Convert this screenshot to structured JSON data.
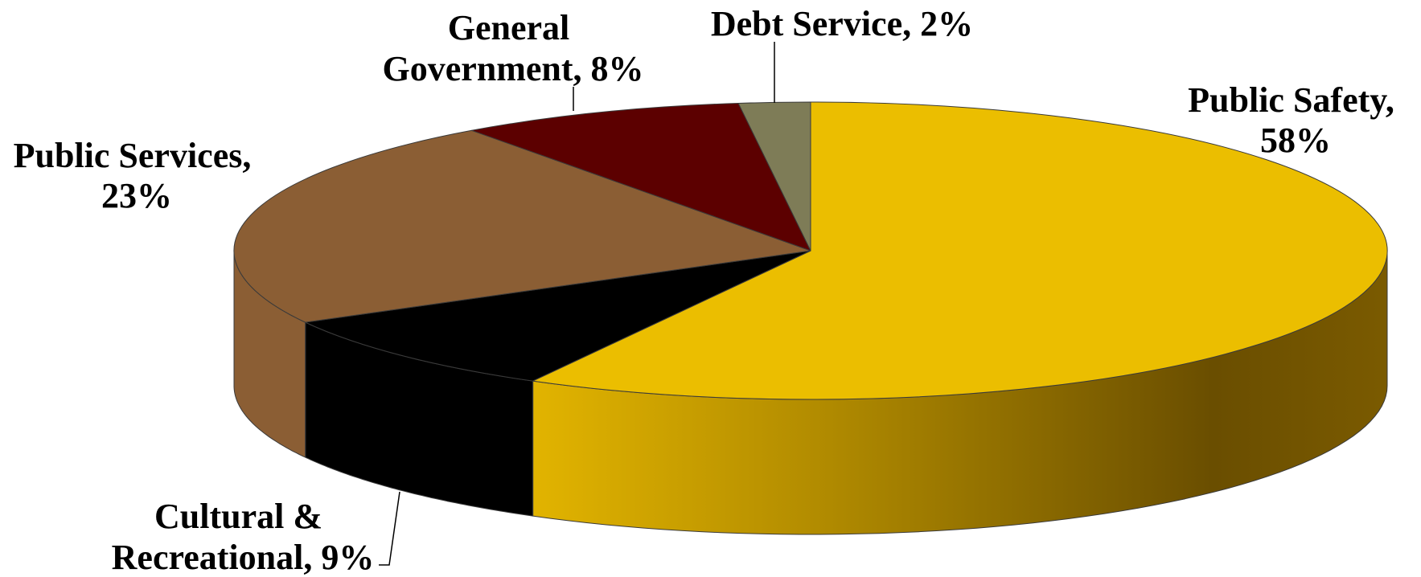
{
  "chart_data": {
    "type": "pie",
    "style": "3d",
    "title": "",
    "slices": [
      {
        "label_lines": [
          "Public Safety,",
          "58%"
        ],
        "category": "Public Safety",
        "value": 58,
        "color": "#EBBE00",
        "side_color": "#6E5100"
      },
      {
        "label_lines": [
          "Cultural &",
          "Recreational, 9%"
        ],
        "category": "Cultural & Recreational",
        "value": 9,
        "color": "#000000",
        "side_color": "#000000"
      },
      {
        "label_lines": [
          "Public Services,",
          "23%"
        ],
        "category": "Public Services",
        "value": 23,
        "color": "#8B5E34",
        "side_color": "#8B5E34"
      },
      {
        "label_lines": [
          "General",
          "Government, 8%"
        ],
        "category": "General Government",
        "value": 8,
        "color": "#5C0000",
        "side_color": "#5C0000"
      },
      {
        "label_lines": [
          "Debt Service, 2%"
        ],
        "category": "Debt Service",
        "value": 2,
        "color": "#7E7C57",
        "side_color": "#7E7C57"
      }
    ],
    "start": "12 o'clock",
    "direction": "clockwise",
    "legend": "none"
  }
}
